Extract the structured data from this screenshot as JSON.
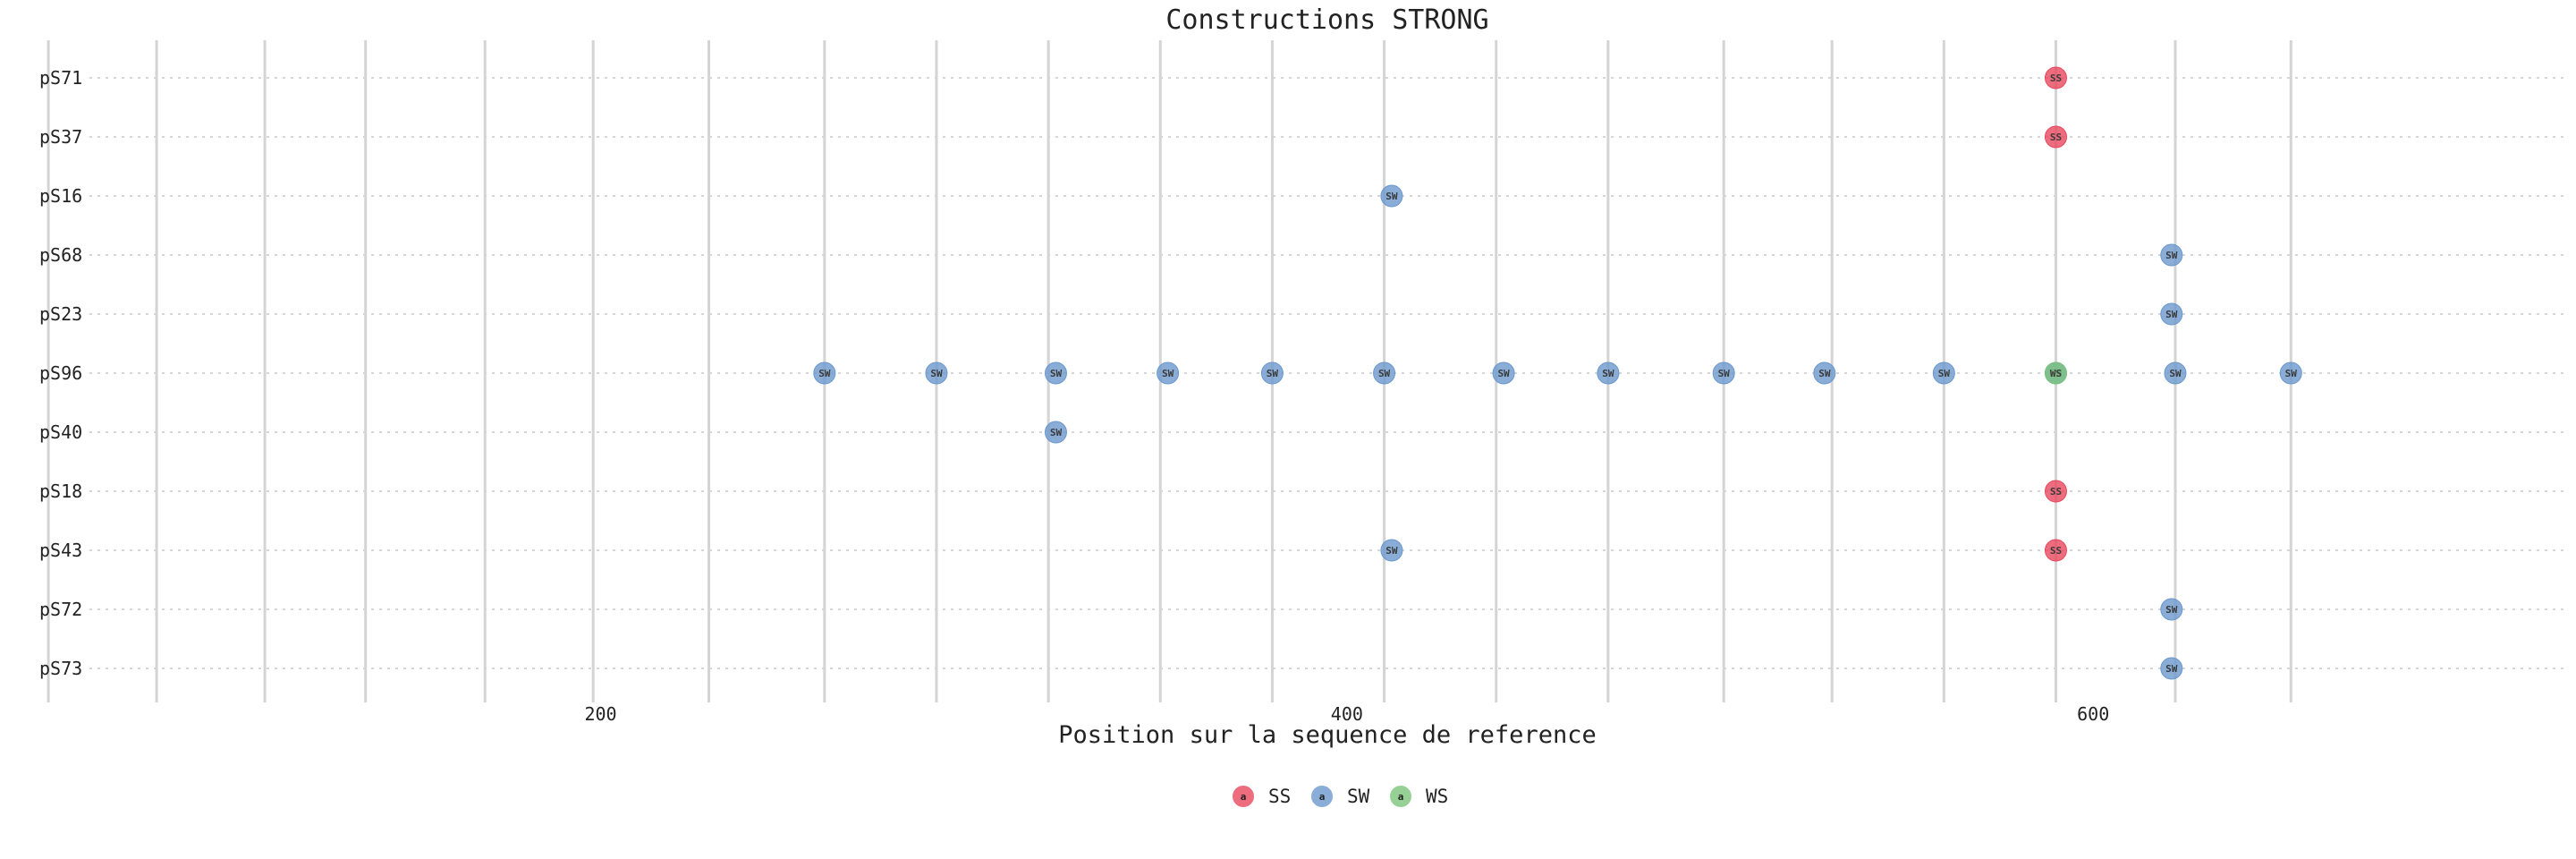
{
  "chart_data": {
    "type": "scatter",
    "title": "Constructions STRONG",
    "xlabel": "Position sur la sequence de reference",
    "ylabel": "",
    "xlim": [
      63,
      727
    ],
    "x_ticks": [
      200,
      400,
      600
    ],
    "vlines": [
      52,
      81,
      110,
      137,
      169,
      198,
      229,
      260,
      290,
      320,
      350,
      380,
      410,
      440,
      470,
      501,
      530,
      560,
      590,
      622,
      653
    ],
    "categories": [
      "pS71",
      "pS37",
      "pS16",
      "pS68",
      "pS23",
      "pS96",
      "pS40",
      "pS18",
      "pS43",
      "pS72",
      "pS73"
    ],
    "grid": true,
    "legend_position": "bottom",
    "series": [
      {
        "name": "SS",
        "marker_label": "SS",
        "color": "#e8485e",
        "points": [
          {
            "x": 590,
            "y": "pS71"
          },
          {
            "x": 590,
            "y": "pS37"
          },
          {
            "x": 590,
            "y": "pS18"
          },
          {
            "x": 590,
            "y": "pS43"
          }
        ]
      },
      {
        "name": "SW",
        "marker_label": "SW",
        "color": "#6b98cd",
        "points": [
          {
            "x": 412,
            "y": "pS16"
          },
          {
            "x": 621,
            "y": "pS68"
          },
          {
            "x": 621,
            "y": "pS23"
          },
          {
            "x": 260,
            "y": "pS96"
          },
          {
            "x": 290,
            "y": "pS96"
          },
          {
            "x": 322,
            "y": "pS96"
          },
          {
            "x": 352,
            "y": "pS96"
          },
          {
            "x": 380,
            "y": "pS96"
          },
          {
            "x": 410,
            "y": "pS96"
          },
          {
            "x": 442,
            "y": "pS96"
          },
          {
            "x": 470,
            "y": "pS96"
          },
          {
            "x": 501,
            "y": "pS96"
          },
          {
            "x": 528,
            "y": "pS96"
          },
          {
            "x": 560,
            "y": "pS96"
          },
          {
            "x": 590,
            "y": "pS96"
          },
          {
            "x": 622,
            "y": "pS96"
          },
          {
            "x": 653,
            "y": "pS96"
          },
          {
            "x": 322,
            "y": "pS40"
          },
          {
            "x": 412,
            "y": "pS43"
          },
          {
            "x": 621,
            "y": "pS72"
          },
          {
            "x": 621,
            "y": "pS73"
          }
        ]
      },
      {
        "name": "WS",
        "marker_label": "WS",
        "color": "#7cc47a",
        "points": [
          {
            "x": 590,
            "y": "pS96"
          }
        ]
      }
    ],
    "legend_key_glyph": "a"
  }
}
